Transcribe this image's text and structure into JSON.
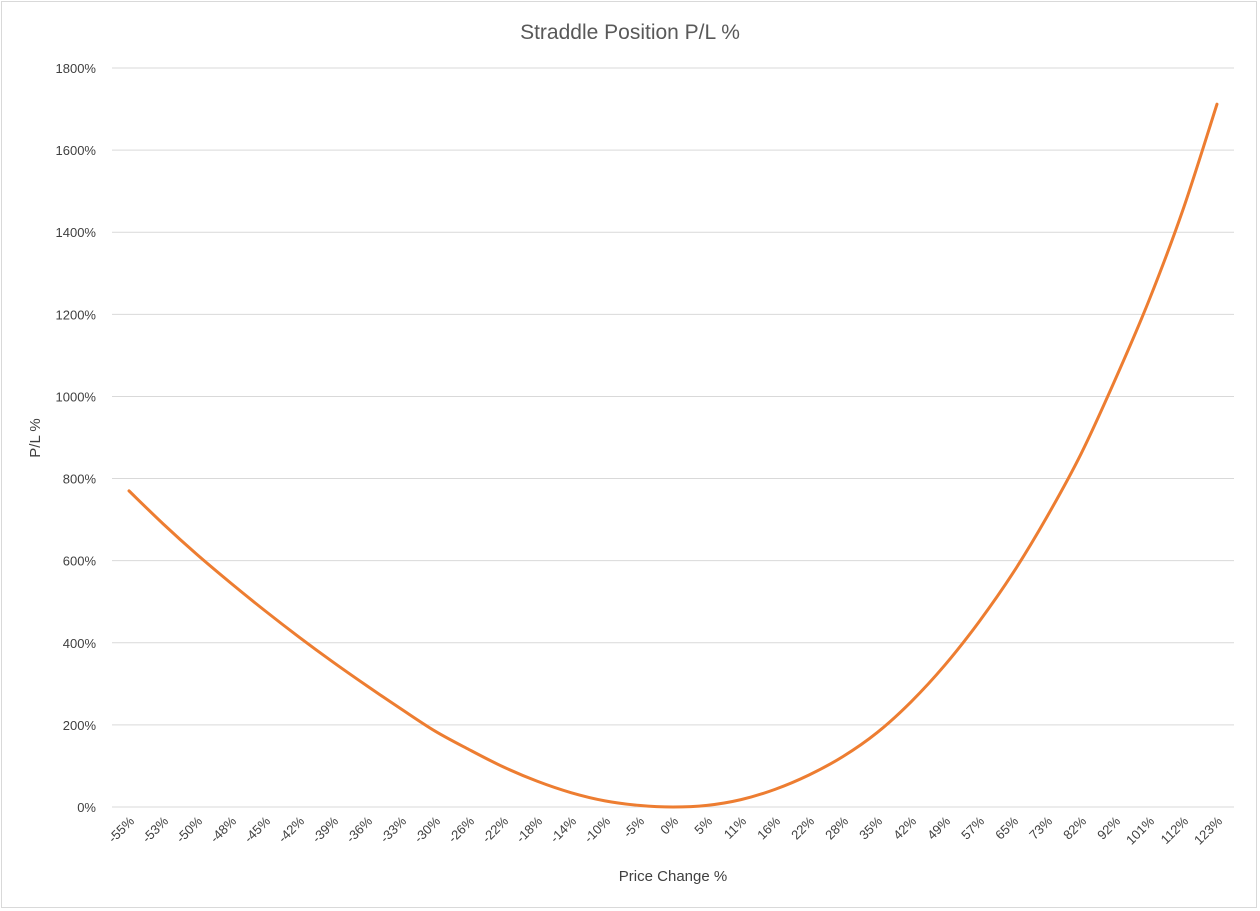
{
  "chart_data": {
    "type": "line",
    "title": "Straddle Position P/L %",
    "xlabel": "Price Change %",
    "ylabel": "P/L %",
    "categories": [
      "-55%",
      "-53%",
      "-50%",
      "-48%",
      "-45%",
      "-42%",
      "-39%",
      "-36%",
      "-33%",
      "-30%",
      "-26%",
      "-22%",
      "-18%",
      "-14%",
      "-10%",
      "-5%",
      "0%",
      "5%",
      "11%",
      "16%",
      "22%",
      "28%",
      "35%",
      "42%",
      "49%",
      "57%",
      "65%",
      "73%",
      "82%",
      "92%",
      "101%",
      "112%",
      "123%"
    ],
    "x": [
      -55,
      -53,
      -50,
      -48,
      -45,
      -42,
      -39,
      -36,
      -33,
      -30,
      -26,
      -22,
      -18,
      -14,
      -10,
      -5,
      0,
      5,
      11,
      16,
      22,
      28,
      35,
      42,
      49,
      57,
      65,
      73,
      82,
      92,
      101,
      112,
      123
    ],
    "series": [
      {
        "values": [
          770,
          690,
          615,
          545,
          478,
          414,
          353,
          295,
          239,
          185,
          140,
          98,
          63,
          35,
          15,
          4,
          0,
          4,
          18,
          43,
          78,
          123,
          181,
          256,
          346,
          451,
          570,
          707,
          860,
          1040,
          1234,
          1455,
          1712
        ],
        "color": "#ed7d31"
      }
    ],
    "ylim": [
      0,
      1800
    ],
    "yticks": [
      "0%",
      "200%",
      "400%",
      "600%",
      "800%",
      "1000%",
      "1200%",
      "1400%",
      "1600%",
      "1800%"
    ],
    "ytick_values": [
      0,
      200,
      400,
      600,
      800,
      1000,
      1200,
      1400,
      1600,
      1800
    ],
    "grid": true,
    "legend": "none"
  }
}
